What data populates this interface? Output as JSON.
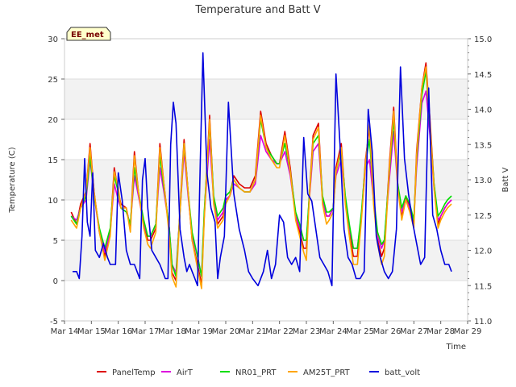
{
  "chart_data": {
    "type": "line",
    "title": "Temperature and Batt V",
    "station_label": "EE_met",
    "xlabel": "Time",
    "ylabel_left": "Temperature (C)",
    "ylabel_right": "Batt V",
    "ylim_left": [
      -5,
      30
    ],
    "ylim_right": [
      11.0,
      15.0
    ],
    "yticks_left": [
      -5,
      0,
      5,
      10,
      15,
      20,
      25,
      30
    ],
    "yticks_right": [
      "11.0",
      "11.5",
      "12.0",
      "12.5",
      "13.0",
      "13.5",
      "14.0",
      "14.5",
      "15.0"
    ],
    "xlim_days": [
      14,
      29
    ],
    "xtick_labels": [
      "Mar 14",
      "Mar 15",
      "Mar 16",
      "Mar 17",
      "Mar 18",
      "Mar 19",
      "Mar 20",
      "Mar 21",
      "Mar 22",
      "Mar 23",
      "Mar 24",
      "Mar 25",
      "Mar 26",
      "Mar 27",
      "Mar 28",
      "Mar 29"
    ],
    "legend_position": "bottom",
    "grid": true,
    "band_shading": true,
    "series": [
      {
        "name": "PanelTemp",
        "axis": "left",
        "color": "#dd0000",
        "x": [
          14.25,
          14.45,
          14.6,
          14.8,
          14.95,
          15.1,
          15.3,
          15.5,
          15.7,
          15.85,
          16.0,
          16.1,
          16.3,
          16.45,
          16.6,
          16.75,
          16.95,
          17.1,
          17.2,
          17.4,
          17.55,
          17.7,
          17.9,
          18.0,
          18.15,
          18.3,
          18.45,
          18.6,
          18.75,
          18.95,
          19.1,
          19.2,
          19.4,
          19.55,
          19.7,
          19.9,
          20.0,
          20.15,
          20.3,
          20.5,
          20.7,
          20.9,
          21.1,
          21.3,
          21.5,
          21.7,
          21.9,
          22.0,
          22.2,
          22.4,
          22.6,
          22.75,
          22.9,
          23.0,
          23.1,
          23.25,
          23.45,
          23.6,
          23.75,
          23.85,
          24.0,
          24.1,
          24.3,
          24.45,
          24.6,
          24.75,
          24.9,
          25.05,
          25.2,
          25.35,
          25.5,
          25.65,
          25.8,
          25.9,
          26.1,
          26.25,
          26.4,
          26.55,
          26.7,
          26.85,
          27.0,
          27.1,
          27.3,
          27.45,
          27.6,
          27.75,
          27.9,
          28.0,
          28.15,
          28.25,
          28.4
        ],
        "y": [
          8.5,
          7.0,
          9.5,
          11.0,
          17.0,
          11.0,
          6.0,
          3.0,
          6.0,
          14.0,
          11.0,
          9.5,
          9.0,
          6.5,
          16.0,
          11.0,
          7.0,
          5.0,
          5.0,
          6.5,
          17.0,
          12.0,
          6.0,
          1.0,
          0.0,
          9.0,
          17.5,
          11.0,
          5.0,
          2.0,
          -0.5,
          8.0,
          20.5,
          10.0,
          7.0,
          8.0,
          10.0,
          10.5,
          13.0,
          12.0,
          11.5,
          11.5,
          13.0,
          21.0,
          17.0,
          15.5,
          14.5,
          14.5,
          18.5,
          14.0,
          8.0,
          6.0,
          4.0,
          4.0,
          10.0,
          18.0,
          19.5,
          10.0,
          8.0,
          8.0,
          9.0,
          14.0,
          17.0,
          10.0,
          6.0,
          3.0,
          3.0,
          8.0,
          15.0,
          19.0,
          10.0,
          5.0,
          3.0,
          4.0,
          15.0,
          21.5,
          12.0,
          8.0,
          10.5,
          9.0,
          7.0,
          16.0,
          24.0,
          27.0,
          20.0,
          12.0,
          7.0,
          8.0,
          9.0,
          9.5,
          10.0
        ]
      },
      {
        "name": "AirT",
        "axis": "left",
        "color": "#dd00dd",
        "x": [
          14.25,
          14.45,
          14.6,
          14.8,
          14.95,
          15.1,
          15.3,
          15.5,
          15.7,
          15.85,
          16.0,
          16.1,
          16.3,
          16.45,
          16.6,
          16.75,
          16.95,
          17.1,
          17.2,
          17.4,
          17.55,
          17.7,
          17.9,
          18.0,
          18.15,
          18.3,
          18.45,
          18.6,
          18.75,
          18.95,
          19.1,
          19.2,
          19.4,
          19.55,
          19.7,
          19.9,
          20.0,
          20.15,
          20.3,
          20.5,
          20.7,
          20.9,
          21.1,
          21.3,
          21.5,
          21.7,
          21.9,
          22.0,
          22.2,
          22.4,
          22.6,
          22.75,
          22.9,
          23.0,
          23.1,
          23.25,
          23.45,
          23.6,
          23.75,
          23.85,
          24.0,
          24.1,
          24.3,
          24.45,
          24.6,
          24.75,
          24.9,
          25.05,
          25.2,
          25.35,
          25.5,
          25.65,
          25.8,
          25.9,
          26.1,
          26.25,
          26.4,
          26.55,
          26.7,
          26.85,
          27.0,
          27.1,
          27.3,
          27.45,
          27.6,
          27.75,
          27.9,
          28.0,
          28.15,
          28.25,
          28.4
        ],
        "y": [
          8.0,
          7.5,
          9.0,
          10.0,
          15.0,
          10.5,
          6.0,
          3.5,
          6.0,
          12.0,
          10.0,
          9.0,
          8.5,
          7.0,
          13.0,
          10.5,
          7.0,
          5.5,
          5.5,
          7.0,
          14.0,
          11.0,
          6.5,
          2.0,
          1.0,
          8.5,
          16.0,
          10.5,
          5.5,
          3.0,
          0.5,
          8.0,
          17.5,
          10.0,
          7.5,
          8.5,
          10.0,
          10.5,
          12.0,
          11.5,
          11.0,
          11.0,
          12.0,
          18.0,
          16.0,
          15.0,
          14.5,
          14.5,
          16.0,
          13.0,
          8.0,
          6.5,
          5.0,
          5.0,
          9.5,
          16.0,
          17.0,
          10.0,
          8.0,
          8.0,
          9.0,
          13.0,
          15.0,
          10.0,
          6.5,
          4.0,
          4.0,
          8.0,
          14.0,
          15.0,
          10.0,
          5.5,
          4.0,
          5.0,
          13.0,
          18.5,
          11.5,
          8.5,
          10.0,
          9.0,
          7.5,
          14.0,
          22.0,
          23.5,
          18.0,
          11.5,
          7.5,
          8.0,
          9.0,
          9.5,
          10.0
        ]
      },
      {
        "name": "NR01_PRT",
        "axis": "left",
        "color": "#00dd00",
        "x": [
          14.25,
          14.45,
          14.6,
          14.8,
          14.95,
          15.1,
          15.3,
          15.5,
          15.7,
          15.85,
          16.0,
          16.1,
          16.3,
          16.45,
          16.6,
          16.75,
          16.95,
          17.1,
          17.2,
          17.4,
          17.55,
          17.7,
          17.9,
          18.0,
          18.15,
          18.3,
          18.45,
          18.6,
          18.75,
          18.95,
          19.1,
          19.2,
          19.4,
          19.55,
          19.7,
          19.9,
          20.0,
          20.15,
          20.3,
          20.5,
          20.7,
          20.9,
          21.1,
          21.3,
          21.5,
          21.7,
          21.9,
          22.0,
          22.2,
          22.4,
          22.6,
          22.75,
          22.9,
          23.0,
          23.1,
          23.25,
          23.45,
          23.6,
          23.75,
          23.85,
          24.0,
          24.1,
          24.3,
          24.45,
          24.6,
          24.75,
          24.9,
          25.05,
          25.2,
          25.35,
          25.5,
          25.65,
          25.8,
          25.9,
          26.1,
          26.25,
          26.4,
          26.55,
          26.7,
          26.85,
          27.0,
          27.1,
          27.3,
          27.45,
          27.6,
          27.75,
          27.9,
          28.0,
          28.15,
          28.25,
          28.4
        ],
        "y": [
          8.0,
          7.0,
          9.0,
          10.5,
          15.5,
          10.5,
          6.5,
          4.0,
          6.5,
          13.0,
          11.0,
          9.0,
          8.5,
          7.0,
          14.0,
          11.0,
          7.5,
          5.5,
          5.5,
          7.0,
          15.5,
          11.5,
          6.5,
          2.0,
          0.5,
          8.5,
          17.0,
          11.0,
          6.0,
          3.0,
          0.5,
          8.5,
          19.5,
          10.5,
          8.0,
          9.0,
          10.5,
          11.0,
          12.5,
          11.5,
          11.0,
          11.0,
          12.5,
          20.0,
          16.5,
          15.5,
          14.5,
          14.5,
          17.0,
          13.5,
          8.5,
          7.0,
          5.0,
          5.0,
          10.0,
          17.0,
          18.0,
          10.5,
          8.5,
          8.5,
          9.0,
          13.5,
          16.0,
          10.5,
          7.0,
          4.0,
          4.0,
          8.5,
          14.5,
          17.5,
          10.5,
          6.0,
          4.5,
          5.0,
          14.0,
          20.0,
          12.0,
          9.0,
          10.5,
          9.5,
          7.5,
          15.0,
          23.0,
          26.0,
          19.0,
          12.0,
          8.0,
          8.5,
          9.5,
          10.0,
          10.5
        ]
      },
      {
        "name": "AM25T_PRT",
        "axis": "left",
        "color": "#ffa500",
        "x": [
          14.25,
          14.45,
          14.6,
          14.8,
          14.95,
          15.1,
          15.3,
          15.5,
          15.7,
          15.85,
          16.0,
          16.1,
          16.3,
          16.45,
          16.6,
          16.75,
          16.95,
          17.1,
          17.2,
          17.4,
          17.55,
          17.7,
          17.9,
          18.0,
          18.15,
          18.3,
          18.45,
          18.6,
          18.75,
          18.95,
          19.1,
          19.2,
          19.4,
          19.55,
          19.7,
          19.9,
          20.0,
          20.15,
          20.3,
          20.5,
          20.7,
          20.9,
          21.1,
          21.3,
          21.5,
          21.7,
          21.9,
          22.0,
          22.2,
          22.4,
          22.6,
          22.75,
          22.9,
          23.0,
          23.1,
          23.25,
          23.45,
          23.6,
          23.75,
          23.85,
          24.0,
          24.1,
          24.3,
          24.45,
          24.6,
          24.75,
          24.9,
          25.05,
          25.2,
          25.35,
          25.5,
          25.65,
          25.8,
          25.9,
          26.1,
          26.25,
          26.4,
          26.55,
          26.7,
          26.85,
          27.0,
          27.1,
          27.3,
          27.45,
          27.6,
          27.75,
          27.9,
          28.0,
          28.15,
          28.25,
          28.4
        ],
        "y": [
          7.5,
          6.5,
          9.0,
          11.0,
          16.5,
          11.0,
          6.0,
          2.5,
          5.5,
          13.5,
          11.5,
          9.0,
          9.0,
          6.0,
          15.5,
          11.0,
          6.5,
          4.5,
          4.0,
          6.0,
          16.5,
          12.0,
          5.5,
          0.5,
          -0.8,
          8.5,
          17.0,
          11.0,
          5.0,
          1.5,
          -1.0,
          7.5,
          20.0,
          9.5,
          6.5,
          7.5,
          9.5,
          10.5,
          12.5,
          11.5,
          11.0,
          11.0,
          12.5,
          20.5,
          16.5,
          15.0,
          14.0,
          14.0,
          18.0,
          13.5,
          7.5,
          5.5,
          3.5,
          2.5,
          9.5,
          17.5,
          19.0,
          9.5,
          7.0,
          7.5,
          8.5,
          13.5,
          16.5,
          9.5,
          5.5,
          2.0,
          2.0,
          7.5,
          14.5,
          19.5,
          9.5,
          4.5,
          2.0,
          3.0,
          14.5,
          21.0,
          11.5,
          7.5,
          10.0,
          8.5,
          6.5,
          15.5,
          24.0,
          26.5,
          19.5,
          11.5,
          6.5,
          7.5,
          8.5,
          9.0,
          9.5
        ]
      },
      {
        "name": "batt_volt",
        "axis": "right",
        "color": "#0000dd",
        "x": [
          14.3,
          14.45,
          14.55,
          14.65,
          14.75,
          14.85,
          14.95,
          15.05,
          15.15,
          15.3,
          15.45,
          15.6,
          15.7,
          15.8,
          15.9,
          16.0,
          16.15,
          16.3,
          16.45,
          16.6,
          16.7,
          16.8,
          16.9,
          17.0,
          17.1,
          17.25,
          17.4,
          17.55,
          17.65,
          17.75,
          17.85,
          17.95,
          18.05,
          18.15,
          18.3,
          18.45,
          18.55,
          18.65,
          18.75,
          18.85,
          18.95,
          19.05,
          19.15,
          19.3,
          19.45,
          19.6,
          19.7,
          19.8,
          19.95,
          20.1,
          20.3,
          20.5,
          20.7,
          20.85,
          21.0,
          21.2,
          21.4,
          21.55,
          21.7,
          21.85,
          22.0,
          22.15,
          22.3,
          22.45,
          22.6,
          22.75,
          22.9,
          23.05,
          23.2,
          23.35,
          23.5,
          23.65,
          23.8,
          23.95,
          24.1,
          24.25,
          24.4,
          24.55,
          24.7,
          24.85,
          25.0,
          25.15,
          25.3,
          25.45,
          25.6,
          25.75,
          25.9,
          26.05,
          26.2,
          26.35,
          26.5,
          26.65,
          26.8,
          26.95,
          27.1,
          27.25,
          27.4,
          27.55,
          27.7,
          27.85,
          28.0,
          28.15,
          28.3,
          28.4
        ],
        "y": [
          11.7,
          11.7,
          11.6,
          12.2,
          13.3,
          12.4,
          12.2,
          13.1,
          12.0,
          11.9,
          12.1,
          11.9,
          11.8,
          11.8,
          11.8,
          13.1,
          12.7,
          12.0,
          11.8,
          11.8,
          11.7,
          11.6,
          13.0,
          13.3,
          12.6,
          12.0,
          11.9,
          11.8,
          11.7,
          11.6,
          11.6,
          13.5,
          14.1,
          13.8,
          12.3,
          11.9,
          11.7,
          11.8,
          11.7,
          11.6,
          11.5,
          13.2,
          14.8,
          13.1,
          12.6,
          12.4,
          11.6,
          11.9,
          12.2,
          14.1,
          12.8,
          12.3,
          12.0,
          11.7,
          11.6,
          11.5,
          11.7,
          12.0,
          11.6,
          11.8,
          12.5,
          12.4,
          11.9,
          11.8,
          11.9,
          11.7,
          13.6,
          12.8,
          12.7,
          12.3,
          11.9,
          11.8,
          11.7,
          11.5,
          14.5,
          13.5,
          12.3,
          11.9,
          11.8,
          11.6,
          11.6,
          11.7,
          14.0,
          13.4,
          12.2,
          11.9,
          11.7,
          11.6,
          11.7,
          12.3,
          14.6,
          13.3,
          12.8,
          12.4,
          12.1,
          11.8,
          11.9,
          14.3,
          12.5,
          12.3,
          12.0,
          11.8,
          11.8,
          11.7
        ]
      }
    ]
  }
}
